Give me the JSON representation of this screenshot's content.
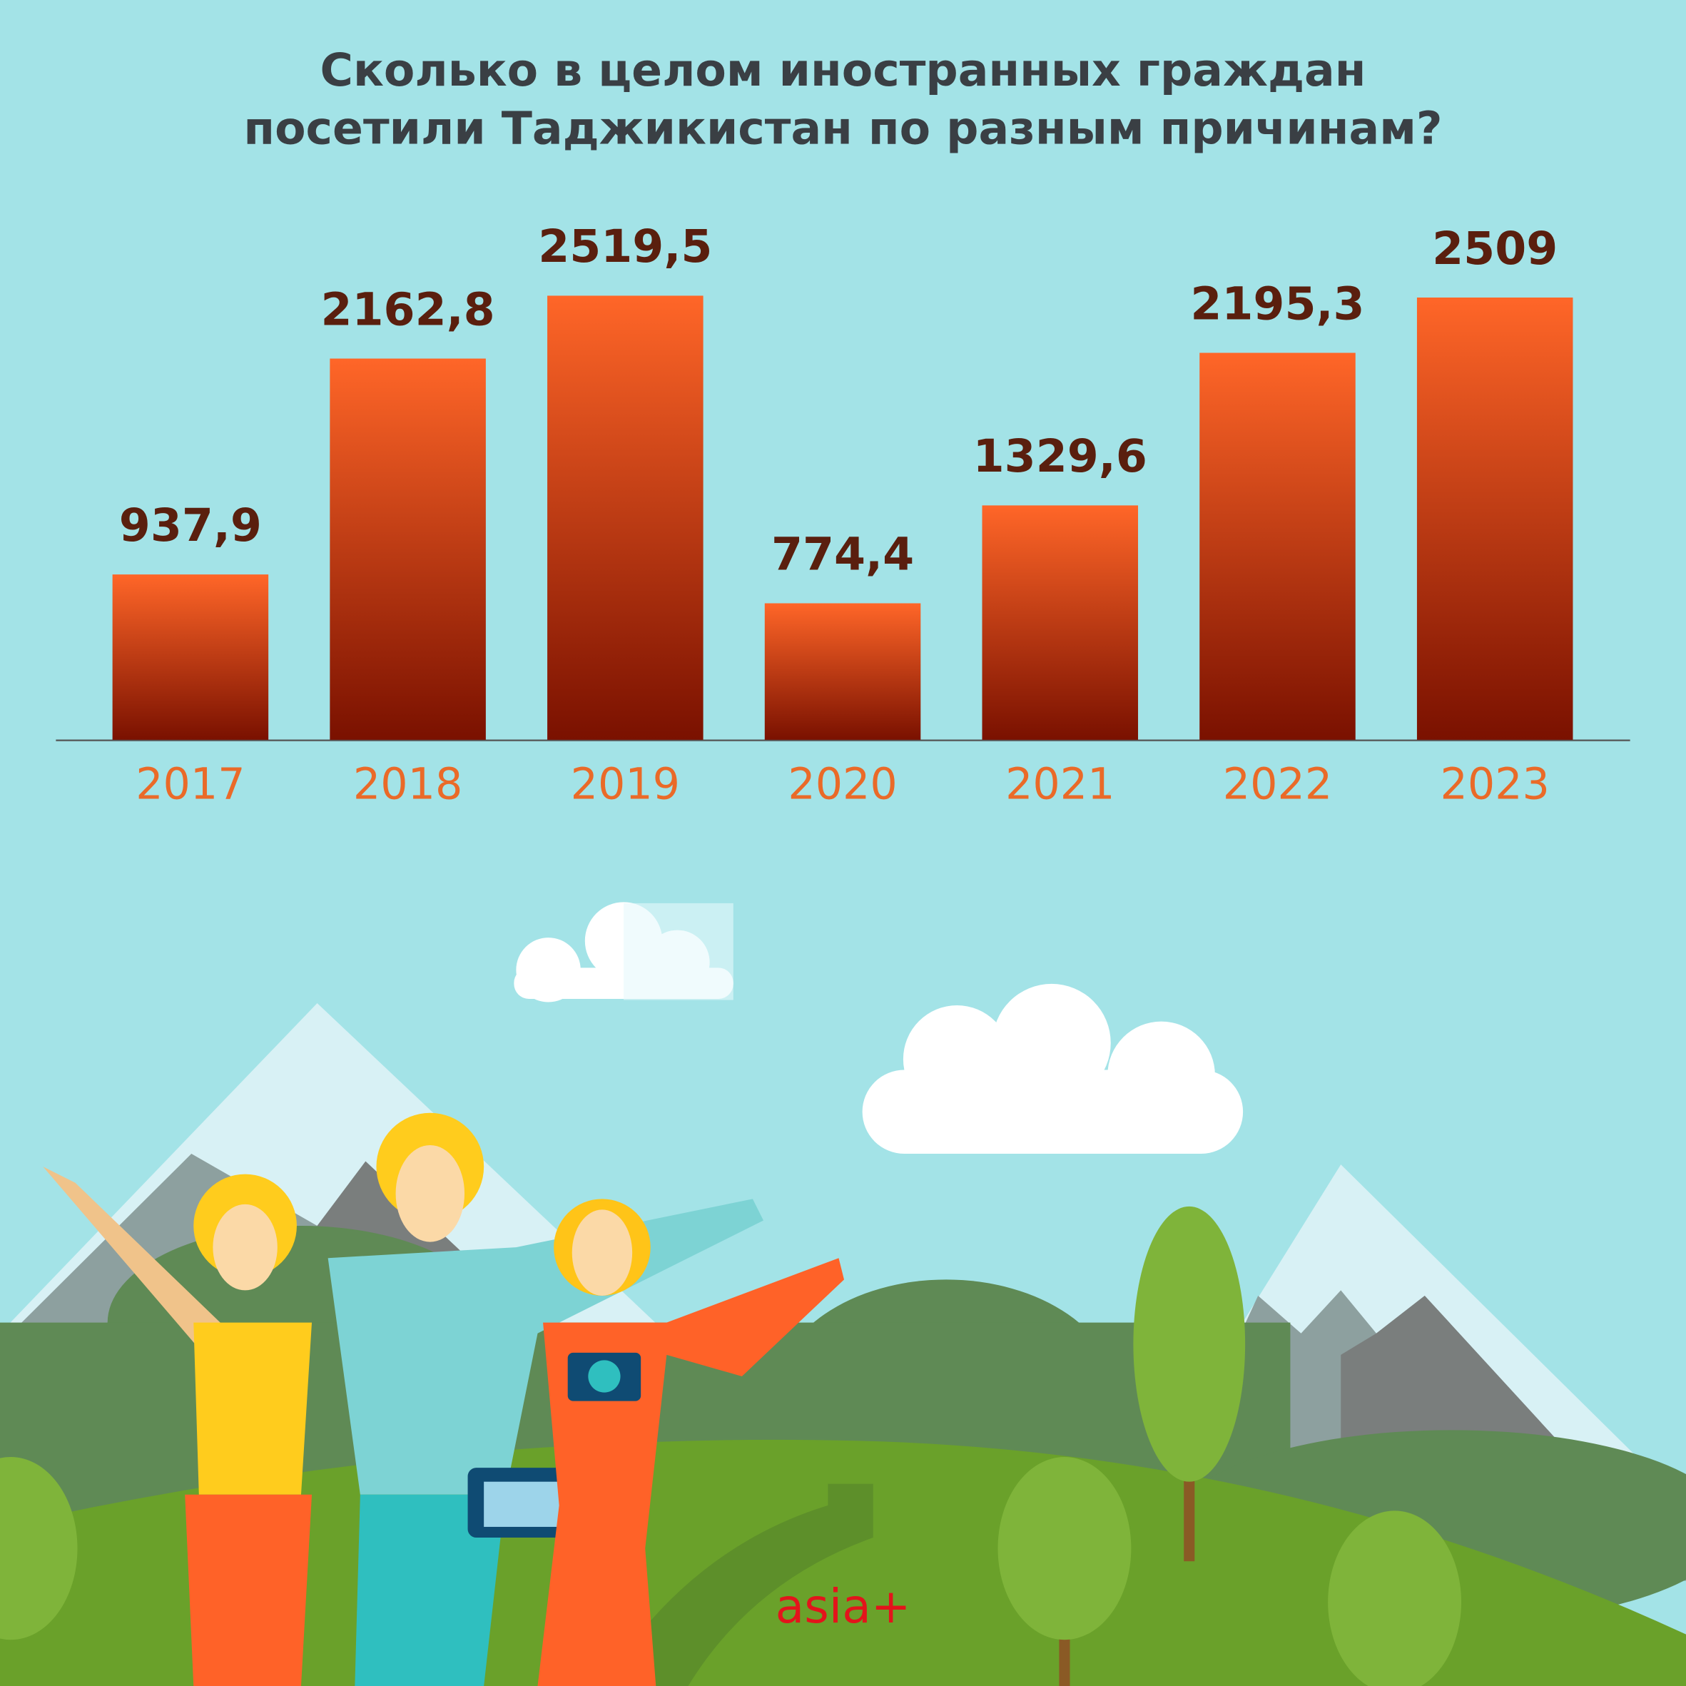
{
  "chart_data": {
    "type": "bar",
    "title": [
      "Сколько в целом иностранных граждан",
      "посетили Таджикистан по разным причинам?"
    ],
    "categories": [
      "2017",
      "2018",
      "2019",
      "2020",
      "2021",
      "2022",
      "2023"
    ],
    "values": [
      937.9,
      2162.8,
      2519.5,
      774.4,
      1329.6,
      2195.3,
      2509
    ],
    "value_labels": [
      "937,9",
      "2162,8",
      "2519,5",
      "774,4",
      "1329,6",
      "2195,3",
      "2509"
    ],
    "color": "#ff6628"
  },
  "logo": "asia+"
}
